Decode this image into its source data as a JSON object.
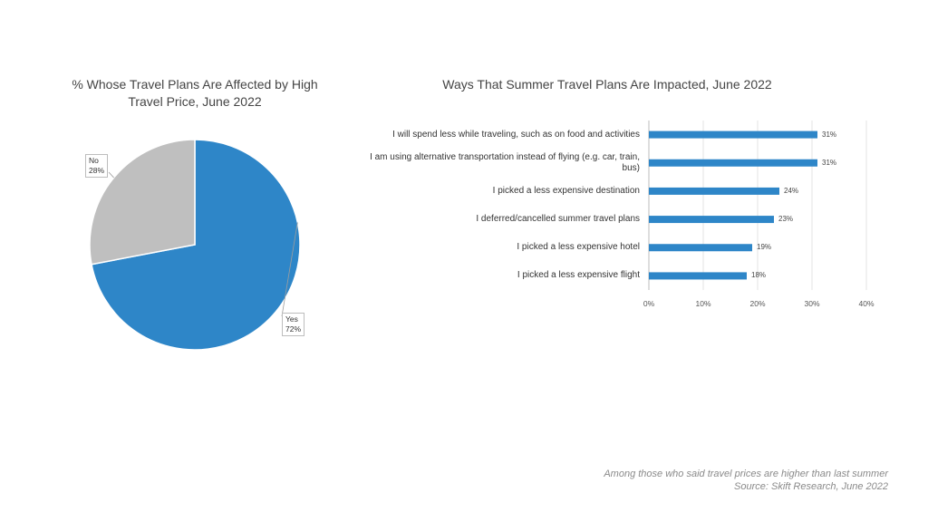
{
  "chart_data": [
    {
      "type": "pie",
      "title": "% Whose Travel Plans Are Affected by High Travel Price, June 2022",
      "slices": [
        {
          "label": "Yes",
          "value": 72,
          "value_label": "72%",
          "color": "#2e86c8"
        },
        {
          "label": "No",
          "value": 28,
          "value_label": "28%",
          "color": "#bfbfbf"
        }
      ]
    },
    {
      "type": "bar",
      "orientation": "horizontal",
      "title": "Ways That Summer Travel Plans Are Impacted, June 2022",
      "categories": [
        "I will spend less while traveling, such as on food and activities",
        "I am using alternative transportation instead of flying (e.g. car, train, bus)",
        "I picked a less expensive destination",
        "I deferred/cancelled summer travel plans",
        "I picked a less expensive hotel",
        "I picked a less expensive flight"
      ],
      "values": [
        31,
        31,
        24,
        23,
        19,
        18
      ],
      "value_labels": [
        "31%",
        "31%",
        "24%",
        "23%",
        "19%",
        "18%"
      ],
      "xlim": [
        0,
        40
      ],
      "ticks": [
        "0%",
        "10%",
        "20%",
        "30%",
        "40%"
      ],
      "grid": true,
      "bar_color": "#2e86c8"
    }
  ],
  "footnote": {
    "note": "Among those who said travel prices are higher than last summer",
    "source": "Source: Skift Research, June 2022"
  }
}
